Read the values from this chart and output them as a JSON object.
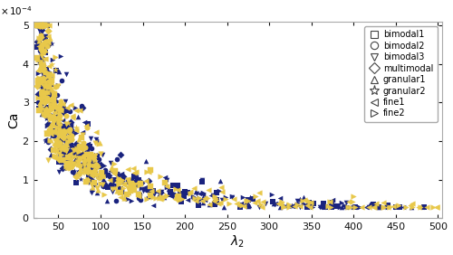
{
  "xlabel": "$\\lambda_2$",
  "ylabel": "Ca",
  "xlim": [
    20,
    505
  ],
  "ylim": [
    0,
    0.00051
  ],
  "yticks": [
    0,
    0.0001,
    0.0002,
    0.0003,
    0.0004,
    0.0005
  ],
  "ytick_labels": [
    "0",
    "1",
    "2",
    "3",
    "4",
    "5"
  ],
  "xticks": [
    50,
    100,
    150,
    200,
    250,
    300,
    350,
    400,
    450,
    500
  ],
  "yellow_color": "#E8C84A",
  "blue_color": "#1A237E",
  "marker_size": 16,
  "legend_labels": [
    "bimodal1",
    "bimodal2",
    "bimodal3",
    "multimodal",
    "granular1",
    "granular2",
    "fine1",
    "fine2"
  ],
  "legend_markers": [
    "s",
    "o",
    "v",
    "D",
    "^",
    "*",
    "<",
    ">"
  ],
  "figsize": [
    5.0,
    2.82
  ],
  "dpi": 100,
  "blue_series": [
    {
      "marker": "s",
      "n": 100,
      "lrange": [
        25,
        500
      ]
    },
    {
      "marker": "o",
      "n": 60,
      "lrange": [
        25,
        150
      ]
    },
    {
      "marker": "v",
      "n": 80,
      "lrange": [
        25,
        420
      ]
    },
    {
      "marker": "D",
      "n": 50,
      "lrange": [
        25,
        160
      ]
    },
    {
      "marker": "^",
      "n": 60,
      "lrange": [
        25,
        490
      ]
    },
    {
      "marker": "*",
      "n": 20,
      "lrange": [
        25,
        100
      ]
    },
    {
      "marker": "<",
      "n": 80,
      "lrange": [
        25,
        490
      ]
    },
    {
      "marker": ">",
      "n": 80,
      "lrange": [
        25,
        490
      ]
    }
  ],
  "yellow_series": [
    {
      "marker": "s",
      "n": 50,
      "lrange": [
        25,
        200
      ]
    },
    {
      "marker": "o",
      "n": 50,
      "lrange": [
        25,
        100
      ]
    },
    {
      "marker": "v",
      "n": 60,
      "lrange": [
        25,
        140
      ]
    },
    {
      "marker": "D",
      "n": 30,
      "lrange": [
        25,
        100
      ]
    },
    {
      "marker": "^",
      "n": 40,
      "lrange": [
        25,
        130
      ]
    },
    {
      "marker": "*",
      "n": 15,
      "lrange": [
        40,
        80
      ]
    },
    {
      "marker": "<",
      "n": 130,
      "lrange": [
        25,
        500
      ]
    },
    {
      "marker": ">",
      "n": 130,
      "lrange": [
        25,
        500
      ]
    }
  ]
}
